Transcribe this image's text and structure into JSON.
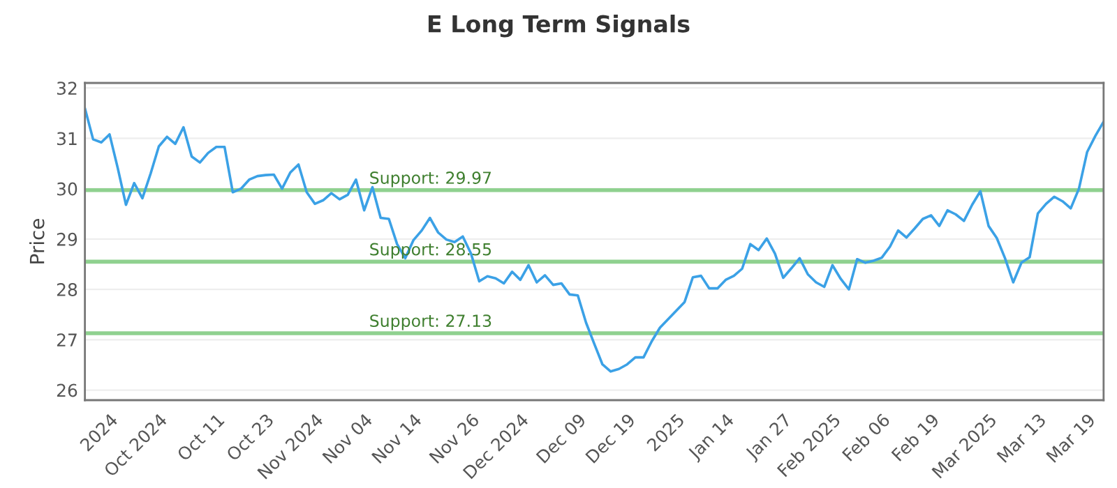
{
  "chart_data": {
    "type": "line",
    "title": "E Long Term Signals",
    "ylabel": "Price",
    "categories": [
      null,
      null,
      null,
      "2024",
      null,
      null,
      null,
      null,
      null,
      "Oct 2024",
      null,
      null,
      null,
      null,
      null,
      null,
      "Oct 11",
      null,
      null,
      null,
      null,
      null,
      "Oct 23",
      null,
      null,
      null,
      null,
      null,
      "Nov 2024",
      null,
      null,
      null,
      null,
      null,
      "Nov 04",
      null,
      null,
      null,
      null,
      null,
      "Nov 14",
      null,
      null,
      null,
      null,
      null,
      null,
      "Nov 26",
      null,
      null,
      null,
      null,
      null,
      "Dec 2024",
      null,
      null,
      null,
      null,
      null,
      null,
      "Dec 09",
      null,
      null,
      null,
      null,
      null,
      "Dec 19",
      null,
      null,
      null,
      null,
      null,
      "2025",
      null,
      null,
      null,
      null,
      null,
      "Jan 14",
      null,
      null,
      null,
      null,
      null,
      null,
      "Jan 27",
      null,
      null,
      null,
      null,
      null,
      "Feb 2025",
      null,
      null,
      null,
      null,
      null,
      "Feb 06",
      null,
      null,
      null,
      null,
      null,
      "Feb 19",
      null,
      null,
      null,
      null,
      null,
      null,
      "Mar 2025",
      null,
      null,
      null,
      null,
      null,
      "Mar 13",
      null,
      null,
      null,
      null,
      null,
      "Mar 19",
      null,
      null
    ],
    "series": [
      {
        "color": "#3ba1e6",
        "values": [
          31.6,
          30.98,
          30.92,
          31.08,
          30.41,
          29.68,
          30.11,
          29.81,
          30.3,
          30.84,
          31.03,
          30.89,
          31.22,
          30.64,
          30.52,
          30.71,
          30.83,
          30.83,
          29.93,
          30.0,
          30.18,
          30.25,
          30.27,
          30.28,
          30.0,
          30.32,
          30.48,
          29.93,
          29.7,
          29.77,
          29.91,
          29.79,
          29.88,
          30.18,
          29.57,
          30.03,
          29.42,
          29.4,
          28.9,
          28.62,
          28.98,
          29.17,
          29.42,
          29.13,
          28.99,
          28.94,
          29.05,
          28.71,
          28.16,
          28.26,
          28.22,
          28.12,
          28.35,
          28.19,
          28.48,
          28.14,
          28.28,
          28.09,
          28.12,
          27.9,
          27.88,
          27.34,
          26.92,
          26.51,
          26.37,
          26.42,
          26.51,
          26.65,
          26.65,
          26.97,
          27.24,
          27.41,
          27.58,
          27.75,
          28.24,
          28.27,
          28.02,
          28.02,
          28.19,
          28.27,
          28.41,
          28.9,
          28.78,
          29.01,
          28.71,
          28.23,
          28.42,
          28.62,
          28.3,
          28.14,
          28.05,
          28.48,
          28.21,
          28.0,
          28.6,
          28.53,
          28.57,
          28.63,
          28.85,
          29.17,
          29.03,
          29.21,
          29.4,
          29.47,
          29.26,
          29.57,
          29.49,
          29.36,
          29.68,
          29.95,
          29.26,
          29.02,
          28.62,
          28.14,
          28.53,
          28.64,
          29.51,
          29.7,
          29.84,
          29.75,
          29.61,
          30.0,
          30.73,
          31.05,
          31.33
        ]
      }
    ],
    "ylim": [
      25.8,
      32.1
    ],
    "yticks": [
      26,
      27,
      28,
      29,
      30,
      31,
      32
    ],
    "grid": "y",
    "legend": false,
    "ref_lines": [
      {
        "axis": "y",
        "value": 29.97,
        "label": "Support: 29.97",
        "color": "#8fd18f"
      },
      {
        "axis": "y",
        "value": 28.55,
        "label": "Support: 28.55",
        "color": "#8fd18f"
      },
      {
        "axis": "y",
        "value": 27.13,
        "label": "Support: 27.13",
        "color": "#8fd18f"
      }
    ]
  }
}
